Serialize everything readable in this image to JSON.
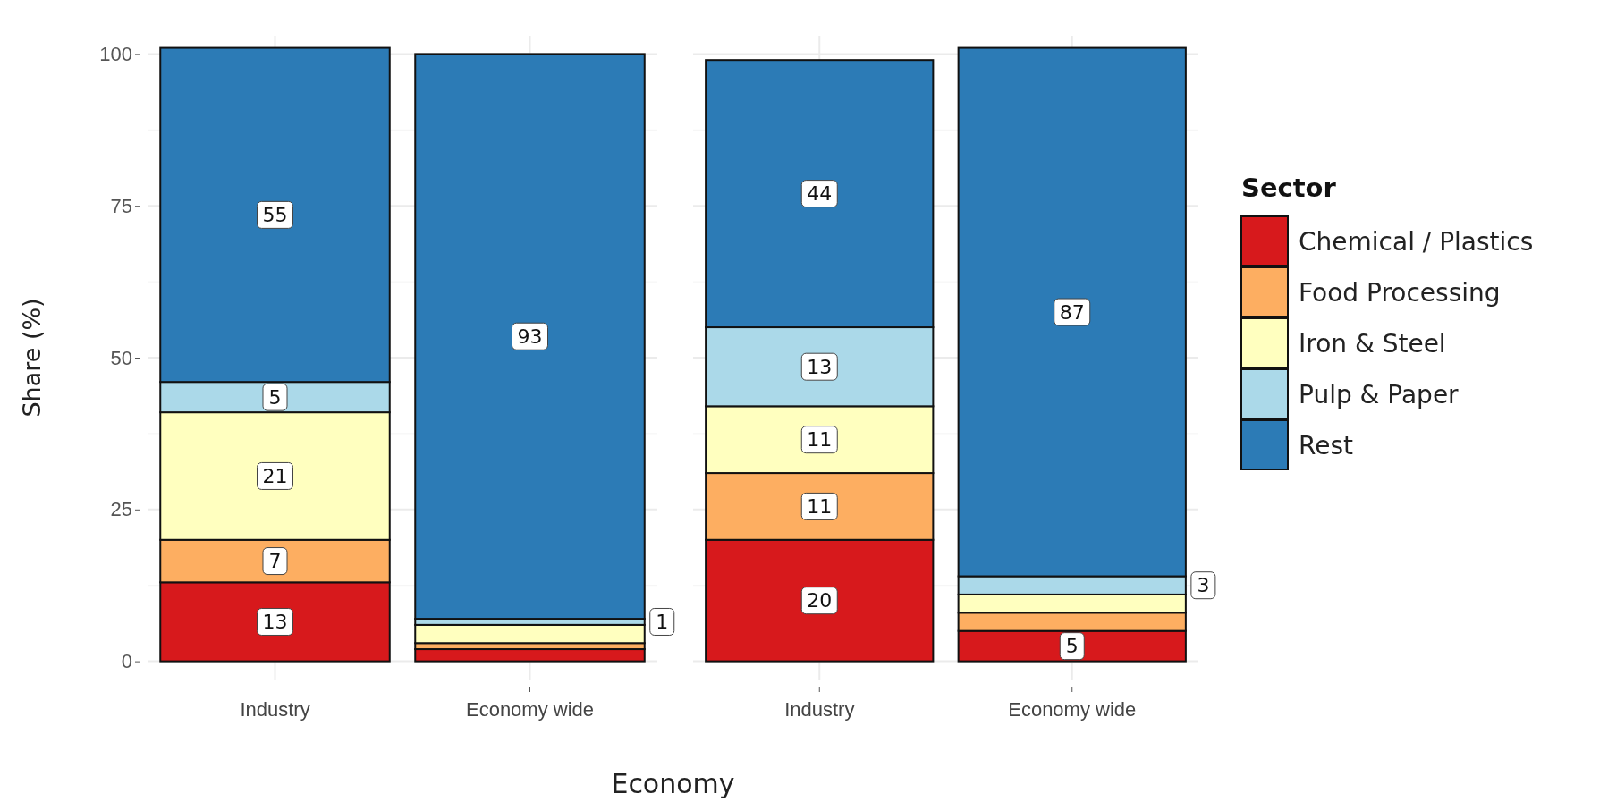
{
  "chart_data": [
    {
      "type": "bar",
      "stacked": true,
      "categories": [
        "Industry",
        "Economy wide"
      ],
      "ylim": [
        -3,
        103
      ],
      "yticks": [
        0,
        25,
        50,
        75,
        100
      ],
      "ylabel": "Share (%)",
      "xlabel": "Economy",
      "grid": true,
      "legend": false,
      "series": [
        {
          "color": "#d7191c",
          "values": [
            13,
            2
          ],
          "value_labels": [
            "13",
            null
          ]
        },
        {
          "color": "#fdae61",
          "values": [
            7,
            1
          ],
          "value_labels": [
            "7",
            null
          ]
        },
        {
          "color": "#ffffbf",
          "values": [
            21,
            3
          ],
          "value_labels": [
            "21",
            null
          ]
        },
        {
          "color": "#abd9e9",
          "values": [
            5,
            1
          ],
          "value_labels": [
            "5",
            "1"
          ]
        },
        {
          "color": "#2c7bb6",
          "values": [
            55,
            93
          ],
          "value_labels": [
            "55",
            "93"
          ]
        }
      ]
    },
    {
      "type": "bar",
      "stacked": true,
      "categories": [
        "Industry",
        "Economy wide"
      ],
      "ylim": [
        -3,
        103
      ],
      "yticks": [
        0,
        25,
        50,
        75,
        100
      ],
      "tick_labels": "x",
      "grid": true,
      "legend": "right",
      "legend_title": "Sector",
      "series": [
        {
          "name": "Chemical / Plastics",
          "color": "#d7191c",
          "values": [
            20,
            5
          ],
          "value_labels": [
            "20",
            "5"
          ]
        },
        {
          "name": "Food Processing",
          "color": "#fdae61",
          "values": [
            11,
            3
          ],
          "value_labels": [
            "11",
            null
          ]
        },
        {
          "name": "Iron & Steel",
          "color": "#ffffbf",
          "values": [
            11,
            3
          ],
          "value_labels": [
            "11",
            null
          ]
        },
        {
          "name": "Pulp & Paper",
          "color": "#abd9e9",
          "values": [
            13,
            3
          ],
          "value_labels": [
            "13",
            "3"
          ]
        },
        {
          "name": "Rest",
          "color": "#2c7bb6",
          "values": [
            44,
            87
          ],
          "value_labels": [
            "44",
            "87"
          ]
        }
      ]
    }
  ]
}
